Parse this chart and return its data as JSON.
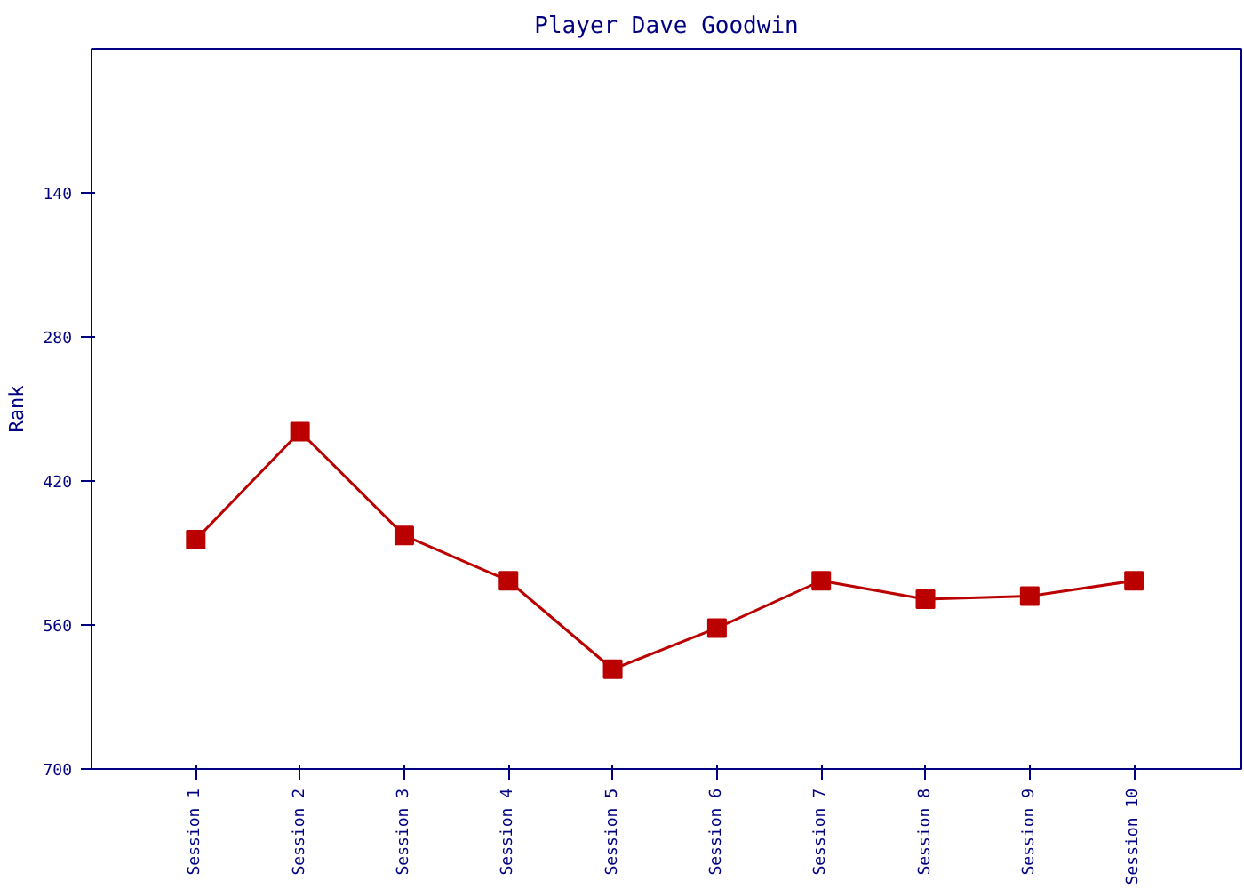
{
  "chart_data": {
    "type": "line",
    "title": "Player Dave Goodwin",
    "ylabel": "Rank",
    "categories": [
      "Session 1",
      "Session 2",
      "Session 3",
      "Session 4",
      "Session 5",
      "Session 6",
      "Session 7",
      "Session 8",
      "Session 9",
      "Session 10"
    ],
    "series": [
      {
        "color": "#bb0000",
        "values": [
          477,
          372,
          473,
          517,
          603,
          563,
          517,
          535,
          532,
          517
        ]
      }
    ],
    "ylim": [
      700,
      0
    ],
    "yticks": [
      140,
      280,
      420,
      560,
      700
    ],
    "grid": false,
    "marker": "square",
    "line_style": "solid"
  }
}
